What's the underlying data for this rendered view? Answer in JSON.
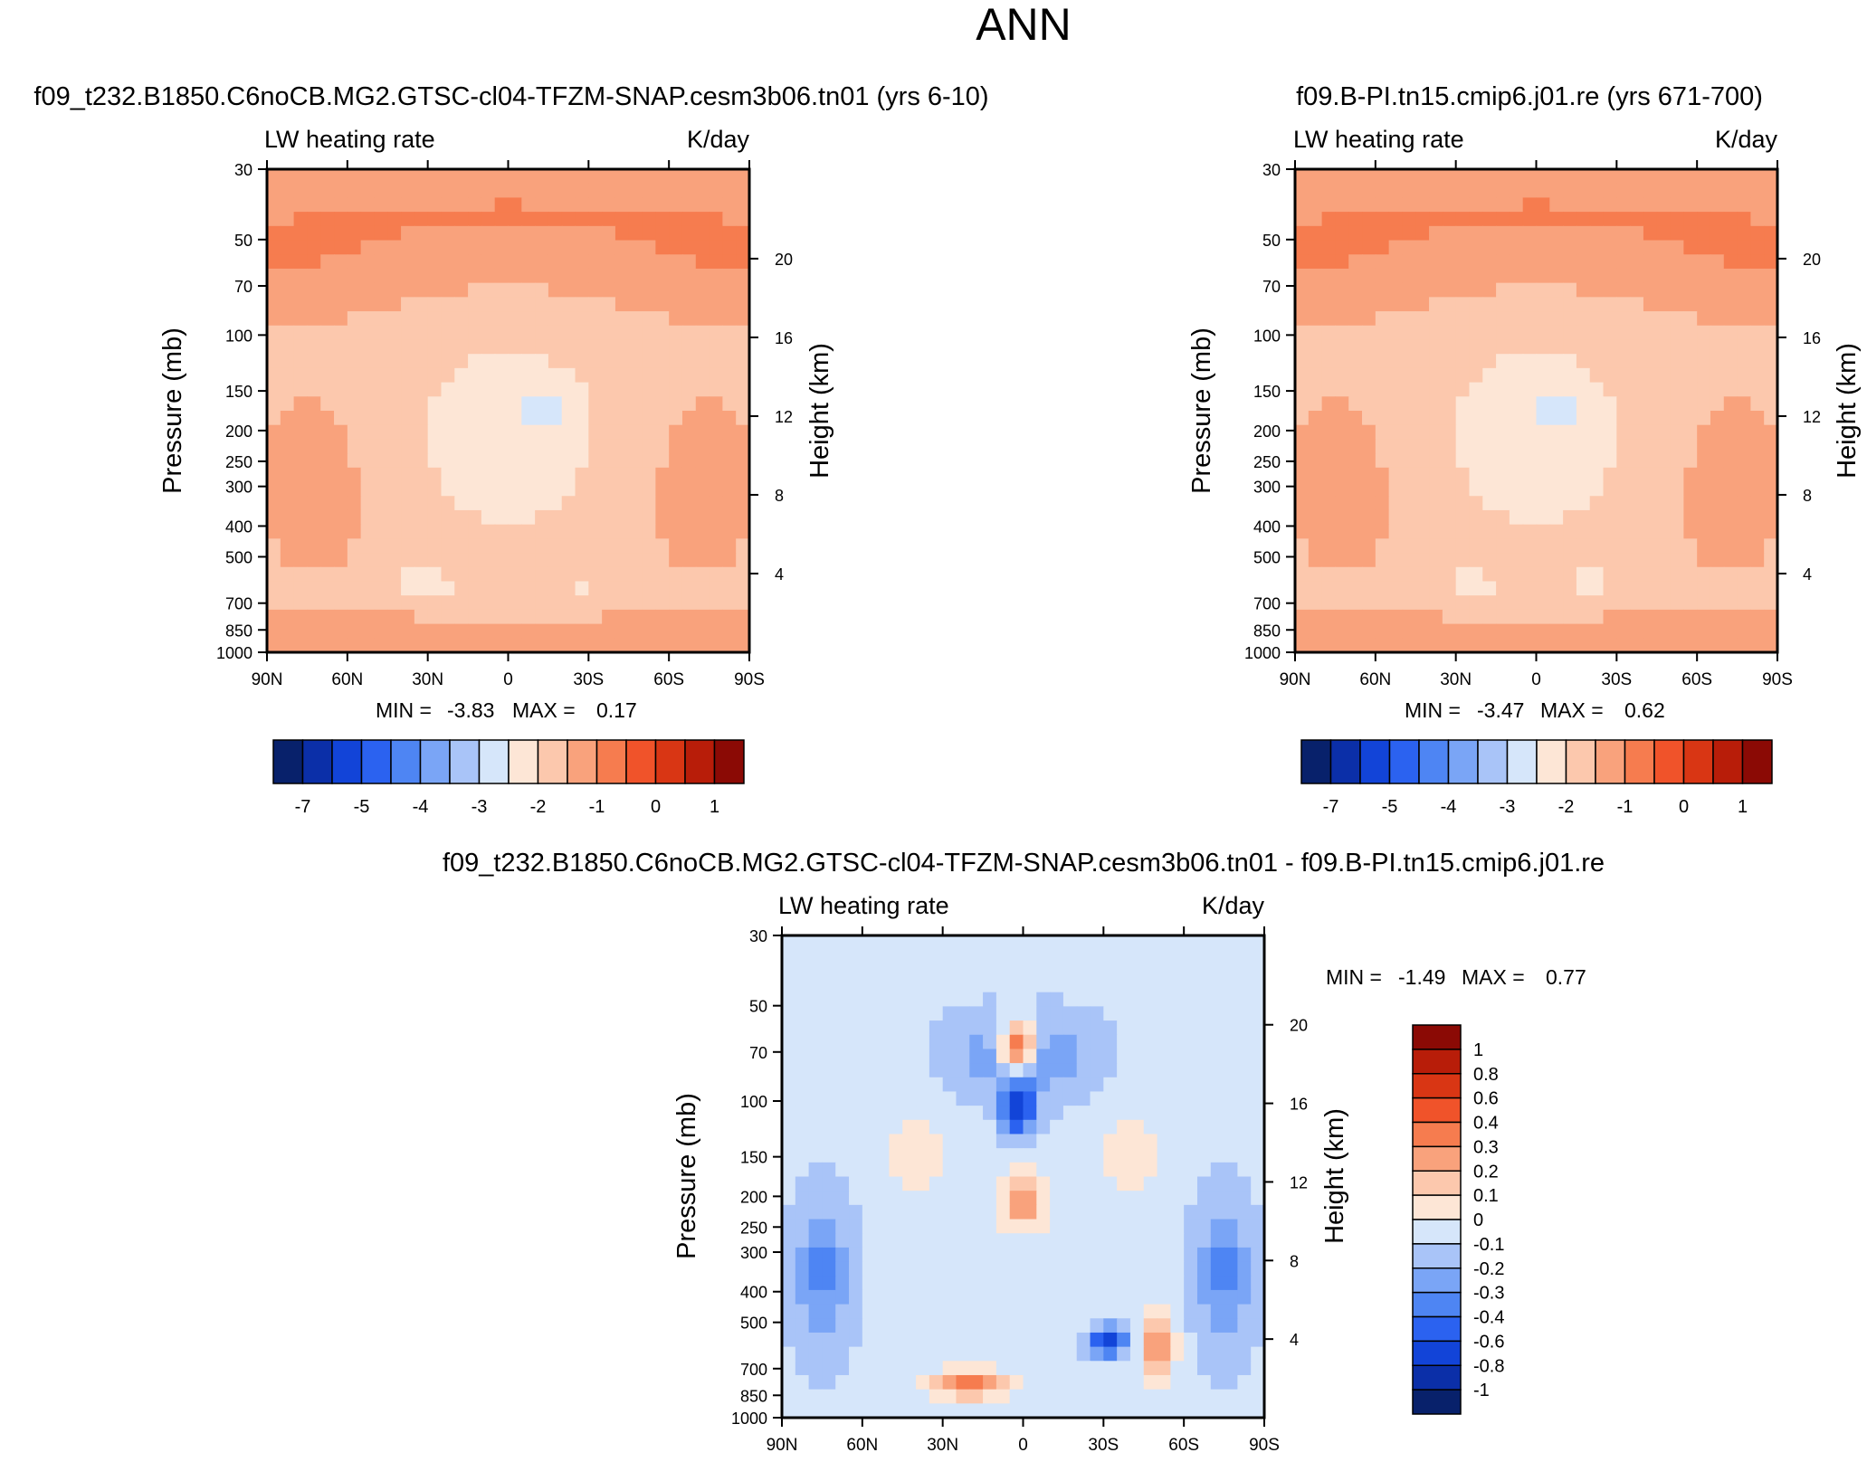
{
  "chart_data": {
    "type": "heatmap",
    "title": "ANN",
    "panels": [
      {
        "id": "case",
        "title": "f09_t232.B1850.C6noCB.MG2.GTSC-cl04-TFZM-SNAP.cesm3b06.tn01 (yrs 6-10)",
        "left_label": "LW heating rate",
        "right_label": "K/day",
        "xlabel": "",
        "ylabel": "Pressure (mb)",
        "y2label": "Height (km)",
        "x_ticks": [
          "90N",
          "60N",
          "30N",
          "0",
          "30S",
          "60S",
          "90S"
        ],
        "y_ticks": [
          "30",
          "50",
          "70",
          "100",
          "150",
          "200",
          "250",
          "300",
          "400",
          "500",
          "700",
          "850",
          "1000"
        ],
        "y2_ticks": [
          "20",
          "16",
          "12",
          "8",
          "4"
        ],
        "stats": {
          "min_label": "MIN =",
          "min": "-3.83",
          "max_label": "MAX =",
          "max": "0.17"
        },
        "field": {
          "type": "lw",
          "min": -3.83,
          "max": 0.17,
          "low_blobs": [
            [
              -15,
              0.5,
              -0.6
            ],
            [
              32,
              0.86,
              -0.8
            ],
            [
              -28,
              0.87,
              -0.4
            ]
          ]
        },
        "colorbar": {
          "orientation": "horizontal",
          "tick_labels": [
            "-7",
            "-5",
            "-4",
            "-3",
            "-2",
            "-1",
            "0",
            "1"
          ],
          "colors": [
            "#08216b",
            "#0b2fa8",
            "#1244d8",
            "#2b62f0",
            "#4e85f3",
            "#7aa5f6",
            "#a9c4f8",
            "#d6e6fa",
            "#fde6d6",
            "#fcc8ad",
            "#f9a27c",
            "#f67c4f",
            "#f0532a",
            "#d93614",
            "#b81d09",
            "#8b0a05"
          ]
        }
      },
      {
        "id": "control",
        "title": "f09.B-PI.tn15.cmip6.j01.re (yrs 671-700)",
        "left_label": "LW heating rate",
        "right_label": "K/day",
        "xlabel": "",
        "ylabel": "Pressure (mb)",
        "y2label": "Height (km)",
        "x_ticks": [
          "90N",
          "60N",
          "30N",
          "0",
          "30S",
          "60S",
          "90S"
        ],
        "y_ticks": [
          "30",
          "50",
          "70",
          "100",
          "150",
          "200",
          "250",
          "300",
          "400",
          "500",
          "700",
          "850",
          "1000"
        ],
        "y2_ticks": [
          "20",
          "16",
          "12",
          "8",
          "4"
        ],
        "stats": {
          "min_label": "MIN =",
          "min": "-3.47",
          "max_label": "MAX =",
          "max": "0.62"
        },
        "field": {
          "type": "lw",
          "min": -3.47,
          "max": 0.62,
          "low_blobs": [
            [
              -8,
              0.5,
              -0.5
            ],
            [
              25,
              0.87,
              -0.6
            ],
            [
              -20,
              0.86,
              -0.5
            ]
          ]
        },
        "colorbar": {
          "orientation": "horizontal",
          "tick_labels": [
            "-7",
            "-5",
            "-4",
            "-3",
            "-2",
            "-1",
            "0",
            "1"
          ],
          "colors": [
            "#08216b",
            "#0b2fa8",
            "#1244d8",
            "#2b62f0",
            "#4e85f3",
            "#7aa5f6",
            "#a9c4f8",
            "#d6e6fa",
            "#fde6d6",
            "#fcc8ad",
            "#f9a27c",
            "#f67c4f",
            "#f0532a",
            "#d93614",
            "#b81d09",
            "#8b0a05"
          ]
        }
      },
      {
        "id": "difference",
        "title": "f09_t232.B1850.C6noCB.MG2.GTSC-cl04-TFZM-SNAP.cesm3b06.tn01 - f09.B-PI.tn15.cmip6.j01.re",
        "left_label": "LW heating rate",
        "right_label": "K/day",
        "xlabel": "",
        "ylabel": "Pressure (mb)",
        "y2label": "Height (km)",
        "x_ticks": [
          "90N",
          "60N",
          "30N",
          "0",
          "30S",
          "60S",
          "90S"
        ],
        "y_ticks": [
          "30",
          "50",
          "70",
          "100",
          "150",
          "200",
          "250",
          "300",
          "400",
          "500",
          "700",
          "850",
          "1000"
        ],
        "y2_ticks": [
          "20",
          "16",
          "12",
          "8",
          "4"
        ],
        "stats": {
          "min_label": "MIN =",
          "min": "-1.49",
          "max_label": "MAX =",
          "max": "0.77"
        },
        "field": {
          "type": "diff",
          "min": -1.49,
          "max": 0.77
        },
        "colorbar": {
          "orientation": "vertical",
          "tick_labels": [
            "1",
            "0.8",
            "0.6",
            "0.4",
            "0.3",
            "0.2",
            "0.1",
            "0",
            "-0.1",
            "-0.2",
            "-0.3",
            "-0.4",
            "-0.6",
            "-0.8",
            "-1"
          ],
          "colors": [
            "#8b0a05",
            "#b81d09",
            "#d93614",
            "#f0532a",
            "#f67c4f",
            "#f9a27c",
            "#fcc8ad",
            "#fde6d6",
            "#d6e6fa",
            "#a9c4f8",
            "#7aa5f6",
            "#4e85f3",
            "#2b62f0",
            "#1244d8",
            "#0b2fa8",
            "#08216b"
          ]
        }
      }
    ]
  }
}
